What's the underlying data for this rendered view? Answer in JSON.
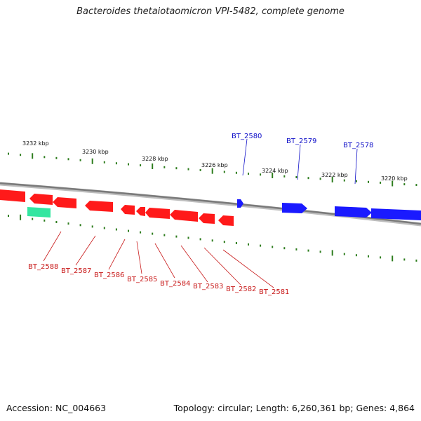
{
  "title": "Bacteroides thetaiotaomicron VPI-5482, complete genome",
  "footer": {
    "accession": "Accession: NC_004663",
    "summary": "Topology: circular; Length: 6,260,361 bp; Genes: 4,864"
  },
  "colors": {
    "forward_gene": "#1a1aff",
    "reverse_gene": "#ff1a1a",
    "other_feature": "#33e6a0",
    "ticks": "#2e7d1e",
    "backbone": "#808080"
  },
  "kbp_labels": [
    "3232 kbp",
    "3230 kbp",
    "3228 kbp",
    "3226 kbp",
    "3224 kbp",
    "3222 kbp",
    "3220 kbp"
  ],
  "top_gene_labels": [
    "BT_2580",
    "BT_2579",
    "BT_2578"
  ],
  "bottom_gene_labels": [
    "BT_2588",
    "BT_2587",
    "BT_2586",
    "BT_2585",
    "BT_2584",
    "BT_2583",
    "BT_2582",
    "BT_2581"
  ]
}
